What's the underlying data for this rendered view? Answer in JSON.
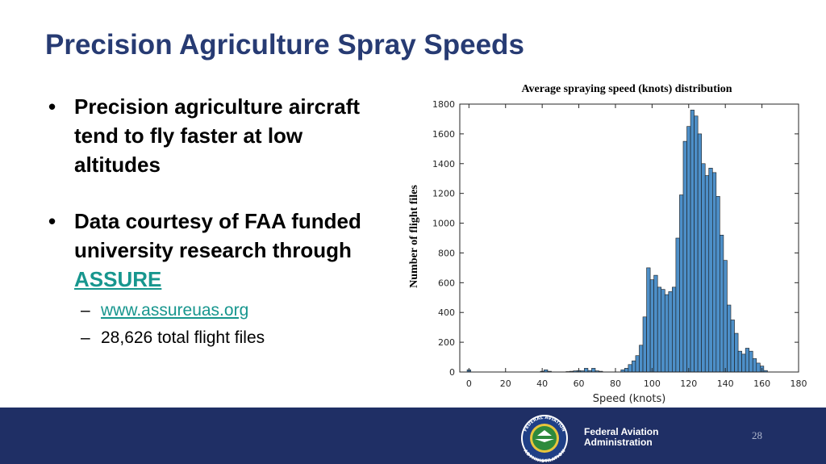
{
  "slide": {
    "title": "Precision Agriculture Spray Speeds",
    "bullets": [
      {
        "text": "Precision agriculture aircraft tend to fly faster at low altitudes"
      },
      {
        "text": "Data courtesy of FAA funded university research through",
        "link": "ASSURE"
      }
    ],
    "sub_bullets": [
      {
        "text": "www.assureuas.org",
        "is_link": true
      },
      {
        "text": "28,626 total flight files",
        "is_link": false
      }
    ],
    "page_number": "28"
  },
  "footer": {
    "org_line1": "Federal Aviation",
    "org_line2": "Administration",
    "seal_top_text": "FEDERAL AVIATION",
    "seal_bottom_text": "ADMINISTRATION"
  },
  "colors": {
    "title": "#273b73",
    "link": "#17968e",
    "footer_bg": "#1f2f65",
    "bar_fill": "#4d8fc8",
    "bar_stroke": "#1a1a1a"
  },
  "chart_data": {
    "type": "bar",
    "title": "Average spraying speed (knots) distribution",
    "xlabel": "Speed (knots)",
    "ylabel": "Number of flight files",
    "xlim": [
      -5,
      180
    ],
    "ylim": [
      0,
      1800
    ],
    "xticks": [
      0,
      20,
      40,
      60,
      80,
      100,
      120,
      140,
      160,
      180
    ],
    "yticks": [
      0,
      200,
      400,
      600,
      800,
      1000,
      1200,
      1400,
      1600,
      1800
    ],
    "bin_width": 2,
    "bins": [
      {
        "x": 0,
        "y": 15
      },
      {
        "x": 40,
        "y": 5
      },
      {
        "x": 42,
        "y": 15
      },
      {
        "x": 44,
        "y": 5
      },
      {
        "x": 54,
        "y": 3
      },
      {
        "x": 56,
        "y": 5
      },
      {
        "x": 58,
        "y": 8
      },
      {
        "x": 60,
        "y": 10
      },
      {
        "x": 62,
        "y": 8
      },
      {
        "x": 64,
        "y": 25
      },
      {
        "x": 66,
        "y": 10
      },
      {
        "x": 68,
        "y": 25
      },
      {
        "x": 70,
        "y": 8
      },
      {
        "x": 72,
        "y": 5
      },
      {
        "x": 84,
        "y": 15
      },
      {
        "x": 86,
        "y": 25
      },
      {
        "x": 88,
        "y": 50
      },
      {
        "x": 90,
        "y": 75
      },
      {
        "x": 92,
        "y": 110
      },
      {
        "x": 94,
        "y": 180
      },
      {
        "x": 96,
        "y": 370
      },
      {
        "x": 98,
        "y": 700
      },
      {
        "x": 100,
        "y": 620
      },
      {
        "x": 102,
        "y": 650
      },
      {
        "x": 104,
        "y": 570
      },
      {
        "x": 106,
        "y": 555
      },
      {
        "x": 108,
        "y": 520
      },
      {
        "x": 110,
        "y": 540
      },
      {
        "x": 112,
        "y": 570
      },
      {
        "x": 114,
        "y": 900
      },
      {
        "x": 116,
        "y": 1190
      },
      {
        "x": 118,
        "y": 1550
      },
      {
        "x": 120,
        "y": 1650
      },
      {
        "x": 122,
        "y": 1760
      },
      {
        "x": 124,
        "y": 1720
      },
      {
        "x": 126,
        "y": 1600
      },
      {
        "x": 128,
        "y": 1400
      },
      {
        "x": 130,
        "y": 1320
      },
      {
        "x": 132,
        "y": 1370
      },
      {
        "x": 134,
        "y": 1340
      },
      {
        "x": 136,
        "y": 1180
      },
      {
        "x": 138,
        "y": 920
      },
      {
        "x": 140,
        "y": 750
      },
      {
        "x": 142,
        "y": 450
      },
      {
        "x": 144,
        "y": 350
      },
      {
        "x": 146,
        "y": 260
      },
      {
        "x": 148,
        "y": 140
      },
      {
        "x": 150,
        "y": 120
      },
      {
        "x": 152,
        "y": 160
      },
      {
        "x": 154,
        "y": 140
      },
      {
        "x": 156,
        "y": 90
      },
      {
        "x": 158,
        "y": 60
      },
      {
        "x": 160,
        "y": 40
      },
      {
        "x": 162,
        "y": 10
      }
    ]
  }
}
